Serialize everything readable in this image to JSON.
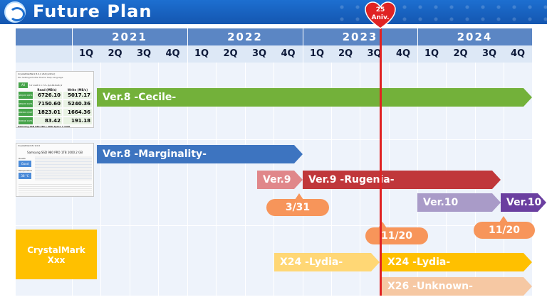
{
  "header": {
    "title": "Future Plan",
    "brand_color": "#1d6fd0"
  },
  "timeline": {
    "years": [
      "2021",
      "2022",
      "2023",
      "2024"
    ],
    "quarters": [
      "1Q",
      "2Q",
      "3Q",
      "4Q",
      "1Q",
      "2Q",
      "3Q",
      "4Q",
      "1Q",
      "2Q",
      "3Q",
      "4Q",
      "1Q",
      "2Q",
      "3Q",
      "4Q"
    ]
  },
  "anniversary": {
    "line1": "25",
    "line2": "Aniv."
  },
  "bars": {
    "cecile": "Ver.8 -Cecile-",
    "marginality": "Ver.8 -Marginality-",
    "ver9_short": "Ver.9",
    "rugenia": "Ver.9 -Rugenia-",
    "ver10_light": "Ver.10",
    "ver10_dark": "Ver.10",
    "lydia_light": "X24 -Lydia-",
    "lydia": "X24 -Lydia-",
    "unknown": "X26 -Unknown-"
  },
  "callouts": {
    "rugenia_date": "3/31",
    "lydia_date": "11/20",
    "ver10_date": "11/20"
  },
  "product_box": {
    "line1": "CrystalMark",
    "line2": "Xxx"
  },
  "cdm_thumb": {
    "title": "CrystalDiskMark 8.0.4 x64 [Admin]",
    "menu": "File  Settings  Profile  Theme  Help  Language",
    "all_label": "All",
    "controls": "5 ▾  1GiB ▾  C: 5% (6/1863GiB) ▾",
    "read_header": "Read (MB/s)",
    "write_header": "Write (MB/s)",
    "rows": [
      {
        "label": "SEQ1M Q8T1",
        "read": "6726.10",
        "write": "5017.17"
      },
      {
        "label": "SEQ1M Q1T1",
        "read": "7150.60",
        "write": "5240.36"
      },
      {
        "label": "RND4K Q32T16",
        "read": "1823.01",
        "write": "1664.36"
      },
      {
        "label": "RND4K Q1T1",
        "read": "83.42",
        "write": "191.18"
      }
    ],
    "footer": "Samsung SSD 980 PRO / AMD Ryzen 3 3100"
  },
  "cdi_thumb": {
    "title": "CrystalDiskInfo 9.0.0",
    "disk": "Samsung SSD 980 PRO 1TB 1000.2 GB",
    "health_label": "Health Status",
    "health_value": "Good",
    "temp_label": "Temperature",
    "temp_value": "38 °C"
  },
  "colors": {
    "year_bar": "#5b86c4",
    "green": "#73b13a",
    "blue": "#3d74c0",
    "red": "#c0373a",
    "red_light": "#e0878a",
    "purple_light": "#a99bc8",
    "purple": "#6b3fa0",
    "yellow": "#ffc000",
    "yellow_light": "#ffd775",
    "peach": "#f6c8a3",
    "callout": "#f7955a",
    "anniversary_line": "#e02323"
  }
}
